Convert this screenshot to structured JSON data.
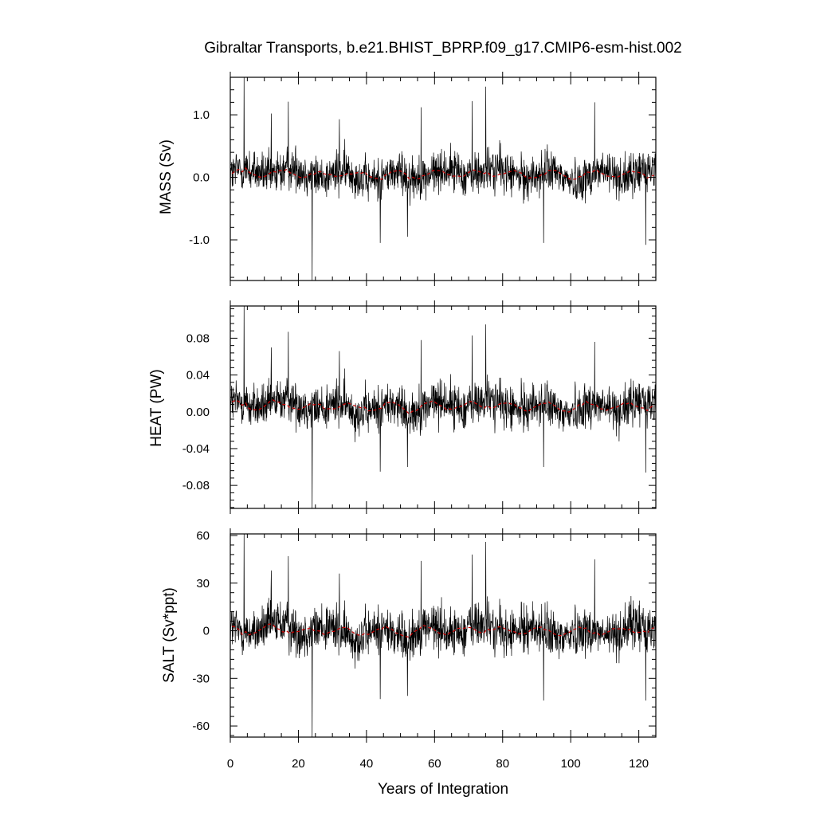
{
  "chart_data": {
    "type": "line",
    "title": "Gibraltar Transports, b.e21.BHIST_BPRP.f09_g17.CMIP6-esm-hist.002",
    "xlabel": "Years of Integration",
    "xlim": [
      0,
      125
    ],
    "x_ticks": [
      0,
      20,
      40,
      60,
      80,
      100,
      120
    ],
    "x_tick_labels": [
      "0",
      "20",
      "40",
      "60",
      "80",
      "100",
      "120"
    ],
    "series_colors": {
      "monthly": "#000000",
      "annual_mean": "#cc0000"
    },
    "grid": false,
    "legend": "none",
    "panels": [
      {
        "name": "mass",
        "ylabel": "MASS (Sv)",
        "ylim": [
          -1.65,
          1.6
        ],
        "y_ticks": [
          -1.0,
          0.0,
          1.0
        ],
        "y_tick_labels": [
          "-1.0",
          "0.0",
          "1.0"
        ],
        "baseline": 0.05,
        "noise": 0.17,
        "annual_amp": 0.05,
        "spikes": [
          {
            "x": 4,
            "y": 1.6
          },
          {
            "x": 12,
            "y": 1.02
          },
          {
            "x": 17,
            "y": 1.21
          },
          {
            "x": 24,
            "y": -1.65
          },
          {
            "x": 32,
            "y": 0.93
          },
          {
            "x": 44,
            "y": -1.05
          },
          {
            "x": 52,
            "y": -0.95
          },
          {
            "x": 56,
            "y": 1.12
          },
          {
            "x": 71,
            "y": 1.22
          },
          {
            "x": 75,
            "y": 1.45
          },
          {
            "x": 92,
            "y": -1.05
          },
          {
            "x": 107,
            "y": 1.2
          },
          {
            "x": 122,
            "y": -1.08
          }
        ]
      },
      {
        "name": "heat",
        "ylabel": "HEAT (PW)",
        "ylim": [
          -0.105,
          0.115
        ],
        "y_ticks": [
          -0.08,
          -0.04,
          0.0,
          0.04,
          0.08
        ],
        "y_tick_labels": [
          "-0.08",
          "-0.04",
          "0.00",
          "0.04",
          "0.08"
        ],
        "baseline": 0.006,
        "noise": 0.012,
        "annual_amp": 0.004,
        "spikes": [
          {
            "x": 4,
            "y": 0.115
          },
          {
            "x": 12,
            "y": 0.07
          },
          {
            "x": 17,
            "y": 0.087
          },
          {
            "x": 24,
            "y": -0.105
          },
          {
            "x": 32,
            "y": 0.066
          },
          {
            "x": 44,
            "y": -0.065
          },
          {
            "x": 52,
            "y": -0.06
          },
          {
            "x": 56,
            "y": 0.078
          },
          {
            "x": 71,
            "y": 0.083
          },
          {
            "x": 75,
            "y": 0.095
          },
          {
            "x": 92,
            "y": -0.06
          },
          {
            "x": 107,
            "y": 0.076
          },
          {
            "x": 122,
            "y": -0.066
          }
        ]
      },
      {
        "name": "salt",
        "ylabel": "SALT (Sv*ppt)",
        "ylim": [
          -67,
          61
        ],
        "y_ticks": [
          -60,
          -30,
          0,
          30,
          60
        ],
        "y_tick_labels": [
          "-60",
          "-30",
          "0",
          "30",
          "60"
        ],
        "baseline": 0,
        "noise": 7.5,
        "annual_amp": 2.2,
        "spikes": [
          {
            "x": 4,
            "y": 61
          },
          {
            "x": 12,
            "y": 38
          },
          {
            "x": 17,
            "y": 47
          },
          {
            "x": 24,
            "y": -67
          },
          {
            "x": 32,
            "y": 36
          },
          {
            "x": 44,
            "y": -43
          },
          {
            "x": 52,
            "y": -41
          },
          {
            "x": 56,
            "y": 44
          },
          {
            "x": 71,
            "y": 48
          },
          {
            "x": 75,
            "y": 56
          },
          {
            "x": 92,
            "y": -44
          },
          {
            "x": 107,
            "y": 45
          },
          {
            "x": 122,
            "y": -44
          }
        ]
      }
    ]
  }
}
